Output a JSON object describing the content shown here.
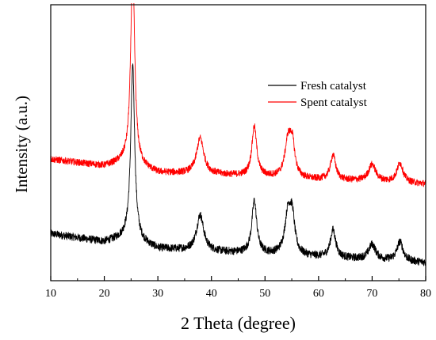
{
  "chart_data": {
    "type": "line",
    "title": "",
    "xlabel": "2 Theta (degree)",
    "ylabel": "Intensity (a.u.)",
    "xlim": [
      10,
      80
    ],
    "ylim": [
      0,
      1
    ],
    "x_ticks": [
      "10",
      "20",
      "30",
      "40",
      "50",
      "60",
      "70",
      "80"
    ],
    "y_ticks": [],
    "grid": false,
    "legend_position": "top-right",
    "series": [
      {
        "name": "Fresh catalyst",
        "color": "#000000",
        "offset": 0.0,
        "baseline": [
          [
            10,
            0.17
          ],
          [
            20,
            0.14
          ],
          [
            24,
            0.155
          ],
          [
            30,
            0.115
          ],
          [
            40,
            0.105
          ],
          [
            50,
            0.095
          ],
          [
            60,
            0.085
          ],
          [
            70,
            0.075
          ],
          [
            80,
            0.065
          ]
        ],
        "peaks": [
          [
            25.3,
            0.63,
            0.45
          ],
          [
            37.9,
            0.13,
            0.8
          ],
          [
            48.0,
            0.19,
            0.55
          ],
          [
            54.3,
            0.15,
            0.7
          ],
          [
            55.1,
            0.12,
            0.55
          ],
          [
            62.7,
            0.1,
            0.6
          ],
          [
            70.0,
            0.055,
            0.8
          ],
          [
            75.2,
            0.07,
            0.7
          ]
        ],
        "noise": 0.014
      },
      {
        "name": "Spent catalyst",
        "color": "#ff0000",
        "offset": 0.28,
        "baseline": [
          [
            10,
            0.16
          ],
          [
            20,
            0.135
          ],
          [
            24,
            0.15
          ],
          [
            30,
            0.11
          ],
          [
            40,
            0.105
          ],
          [
            50,
            0.095
          ],
          [
            60,
            0.085
          ],
          [
            70,
            0.08
          ],
          [
            80,
            0.07
          ]
        ],
        "peaks": [
          [
            25.3,
            0.72,
            0.45
          ],
          [
            37.9,
            0.13,
            0.8
          ],
          [
            48.0,
            0.18,
            0.55
          ],
          [
            54.3,
            0.13,
            0.7
          ],
          [
            55.1,
            0.11,
            0.55
          ],
          [
            62.7,
            0.09,
            0.6
          ],
          [
            70.0,
            0.06,
            0.8
          ],
          [
            75.2,
            0.07,
            0.7
          ]
        ],
        "noise": 0.012
      }
    ]
  }
}
